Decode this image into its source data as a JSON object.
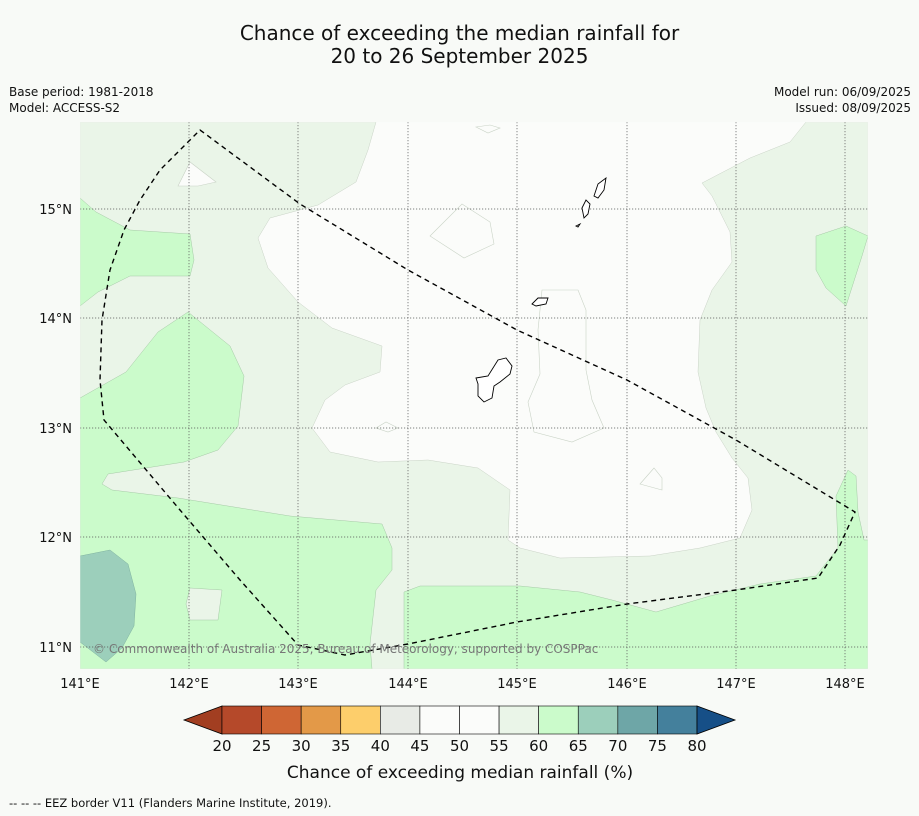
{
  "title_line1": "Chance of exceeding the median rainfall for",
  "title_line2": "20 to 26 September 2025",
  "meta_left": {
    "base_period": "Base period: 1981-2018",
    "model": "Model: ACCESS-S2"
  },
  "meta_right": {
    "model_run": "Model run: 06/09/2025",
    "issued": "Issued: 08/09/2025"
  },
  "map": {
    "lon_ticks": [
      "141°E",
      "142°E",
      "143°E",
      "144°E",
      "145°E",
      "146°E",
      "147°E",
      "148°E"
    ],
    "lat_ticks": [
      "15°N",
      "14°N",
      "13°N",
      "12°N",
      "11°N"
    ],
    "copyright": "© Commonwealth of Australia 2025, Bureau of Meteorology, supported by COSPPac",
    "colors": {
      "band_40_45": "#e8ebe6",
      "band_45_55": "#fbfcfa",
      "band_55_60": "#eaf5e8",
      "band_60_65": "#cbfbcb",
      "band_65_70": "#9ccfbb",
      "land": "#ffffff",
      "eez_line": "#000000"
    }
  },
  "colorbar": {
    "ticks": [
      "20",
      "25",
      "30",
      "35",
      "40",
      "45",
      "50",
      "55",
      "60",
      "65",
      "70",
      "75",
      "80"
    ],
    "colors": [
      "#a23e21",
      "#b5492a",
      "#cf6634",
      "#e39948",
      "#fdce6b",
      "#e8ebe6",
      "#fbfcfa",
      "#fbfcfa",
      "#eaf5e8",
      "#cbfbcb",
      "#9ccfbb",
      "#6ea6a7",
      "#44809c",
      "#164f87"
    ],
    "title": "Chance of exceeding median rainfall (%)"
  },
  "footer": "--  --  -- EEZ border V11 (Flanders Marine Institute, 2019)."
}
